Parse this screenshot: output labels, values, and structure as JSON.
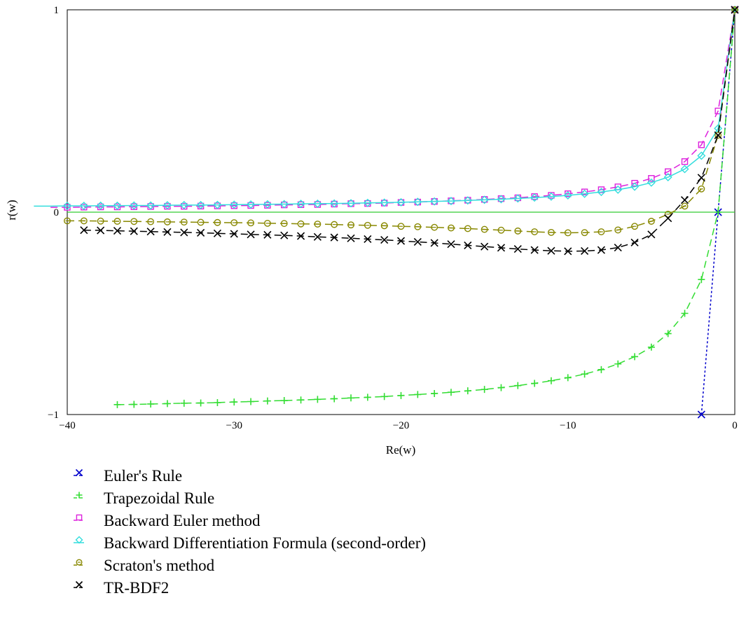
{
  "chart_data": {
    "type": "line",
    "xlabel": "Re(w)",
    "ylabel": "r(w)",
    "xlim": [
      -40,
      0
    ],
    "ylim": [
      -1,
      1
    ],
    "x_ticks": [
      {
        "value": -40,
        "label": "−40"
      },
      {
        "value": -30,
        "label": "−30"
      },
      {
        "value": -20,
        "label": "−20"
      },
      {
        "value": -10,
        "label": "−10"
      },
      {
        "value": 0,
        "label": "0"
      }
    ],
    "y_ticks": [
      {
        "value": -1,
        "label": "−1"
      },
      {
        "value": 0,
        "label": "0"
      },
      {
        "value": 1,
        "label": "1"
      }
    ],
    "zero_line": {
      "y": 0,
      "color": "#33cc33"
    },
    "x_sample_start": -40,
    "x_sample_step": 1,
    "series": [
      {
        "name": "Euler's Rule",
        "color": "#0000cc",
        "dash": "dotted",
        "marker": "x",
        "x": [
          -2,
          -1,
          0
        ],
        "y": [
          -1,
          0,
          1
        ]
      },
      {
        "name": "Trapezoidal Rule",
        "color": "#33dd33",
        "dash": "dashed",
        "marker": "plus",
        "y": [
          -0.951,
          -0.95,
          -0.948,
          -0.946,
          -0.944,
          -0.943,
          -0.941,
          -0.938,
          -0.936,
          -0.933,
          -0.931,
          -0.928,
          -0.925,
          -0.922,
          -0.918,
          -0.915,
          -0.911,
          -0.906,
          -0.901,
          -0.896,
          -0.89,
          -0.883,
          -0.876,
          -0.867,
          -0.857,
          -0.846,
          -0.833,
          -0.818,
          -0.8,
          -0.778,
          -0.75,
          -0.714,
          -0.667,
          -0.6,
          -0.5,
          -0.333,
          0.0,
          1.0
        ]
      },
      {
        "name": "Backward Euler method",
        "color": "#dd22dd",
        "dash": "dashed",
        "marker": "square",
        "y": [
          0.024,
          0.024,
          0.025,
          0.026,
          0.026,
          0.027,
          0.028,
          0.029,
          0.029,
          0.03,
          0.031,
          0.032,
          0.033,
          0.034,
          0.036,
          0.037,
          0.038,
          0.04,
          0.042,
          0.043,
          0.045,
          0.048,
          0.05,
          0.053,
          0.056,
          0.059,
          0.063,
          0.067,
          0.071,
          0.077,
          0.083,
          0.091,
          0.1,
          0.111,
          0.125,
          0.143,
          0.167,
          0.2,
          0.25,
          0.333,
          0.5,
          1.0
        ]
      },
      {
        "name": "Backward Differentiation Formula (second-order)",
        "color": "#33dddd",
        "dash": "solid",
        "marker": "diamond",
        "y": [
          0.03,
          0.03,
          0.031,
          0.031,
          0.032,
          0.032,
          0.033,
          0.033,
          0.034,
          0.035,
          0.035,
          0.036,
          0.037,
          0.038,
          0.039,
          0.04,
          0.041,
          0.042,
          0.043,
          0.044,
          0.046,
          0.047,
          0.049,
          0.051,
          0.053,
          0.055,
          0.058,
          0.061,
          0.064,
          0.068,
          0.072,
          0.077,
          0.083,
          0.091,
          0.1,
          0.111,
          0.126,
          0.146,
          0.173,
          0.213,
          0.279,
          0.414,
          1.0
        ]
      },
      {
        "name": "Scraton's method",
        "color": "#888800",
        "dash": "dashed",
        "marker": "circle",
        "y": [
          -0.043,
          -0.043,
          -0.044,
          -0.045,
          -0.046,
          -0.047,
          -0.048,
          -0.049,
          -0.05,
          -0.051,
          -0.052,
          -0.053,
          -0.055,
          -0.056,
          -0.058,
          -0.059,
          -0.061,
          -0.063,
          -0.065,
          -0.067,
          -0.07,
          -0.072,
          -0.075,
          -0.078,
          -0.081,
          -0.085,
          -0.089,
          -0.093,
          -0.097,
          -0.1,
          -0.102,
          -0.101,
          -0.097,
          -0.088,
          -0.07,
          -0.045,
          -0.01,
          0.03,
          0.115,
          0.38,
          1.0
        ]
      },
      {
        "name": "TR-BDF2",
        "color": "#000000",
        "dash": "dashed",
        "marker": "x",
        "y": [
          -0.089,
          -0.09,
          -0.092,
          -0.094,
          -0.096,
          -0.098,
          -0.1,
          -0.102,
          -0.105,
          -0.107,
          -0.11,
          -0.112,
          -0.115,
          -0.118,
          -0.122,
          -0.125,
          -0.129,
          -0.133,
          -0.137,
          -0.142,
          -0.147,
          -0.152,
          -0.158,
          -0.164,
          -0.17,
          -0.176,
          -0.182,
          -0.187,
          -0.191,
          -0.193,
          -0.192,
          -0.187,
          -0.175,
          -0.15,
          -0.11,
          -0.03,
          0.06,
          0.17,
          0.38,
          1.0
        ]
      }
    ]
  }
}
